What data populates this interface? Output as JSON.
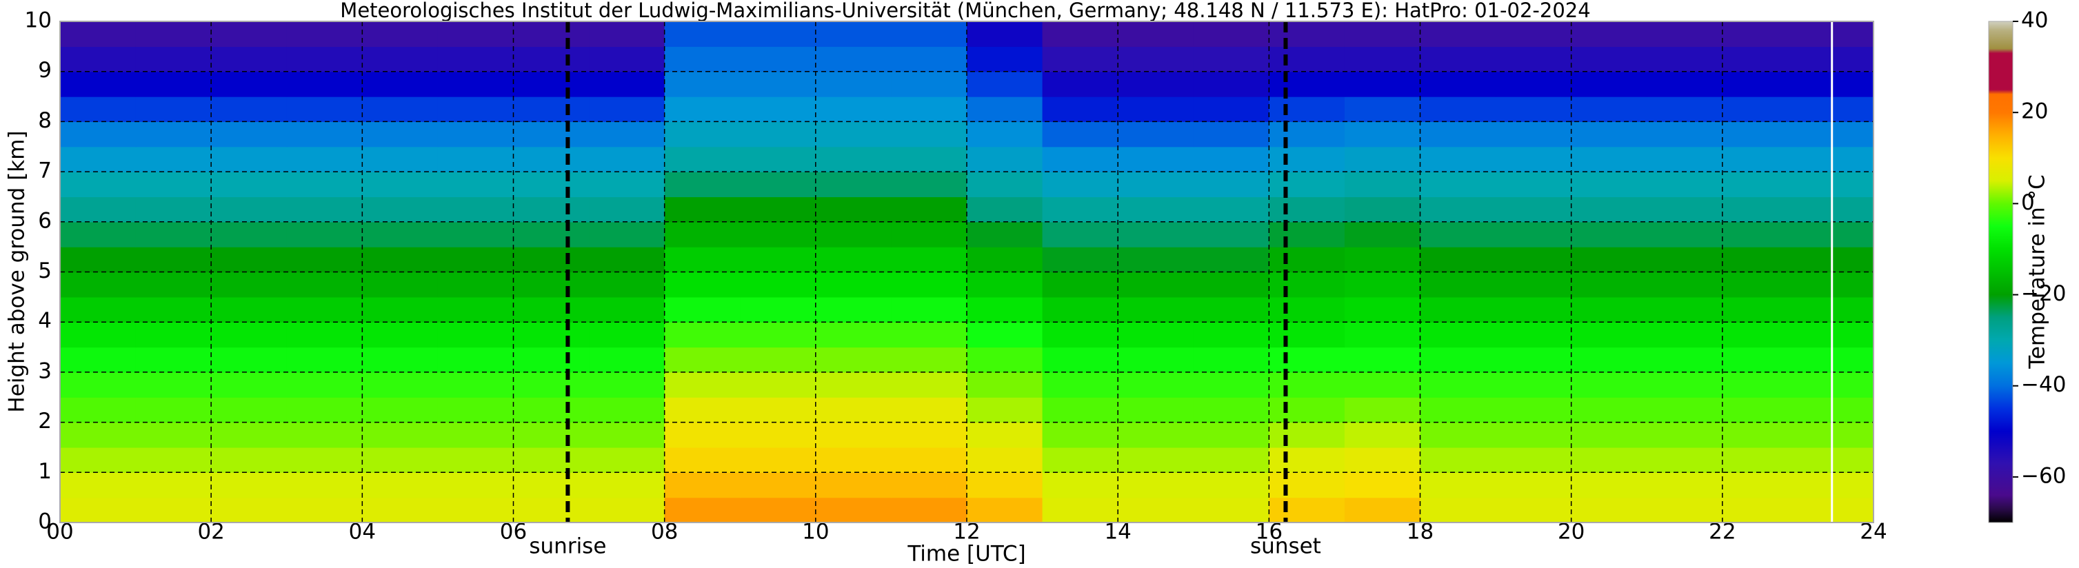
{
  "chart_data": {
    "type": "heatmap",
    "title": "Meteorologisches Institut der Ludwig-Maximilians-Universität (München, Germany; 48.148 N / 11.573 E):    HatPro: 01-02-2024",
    "xlabel": "Time [UTC]",
    "ylabel": "Height above ground [km]",
    "xlim": [
      0,
      24
    ],
    "ylim": [
      0,
      10
    ],
    "xticks": [
      {
        "value": 0,
        "label": "00"
      },
      {
        "value": 2,
        "label": "02"
      },
      {
        "value": 4,
        "label": "04"
      },
      {
        "value": 6,
        "label": "06"
      },
      {
        "value": 8,
        "label": "08"
      },
      10,
      12,
      14,
      16,
      18,
      20,
      22,
      24
    ],
    "yticks": [
      0,
      1,
      2,
      3,
      4,
      5,
      6,
      7,
      8,
      9,
      10
    ],
    "grid": true,
    "xbins": [
      0,
      1,
      2,
      3,
      4,
      5,
      6,
      7,
      8,
      9,
      10,
      11,
      12,
      13,
      14,
      15,
      16,
      17,
      18,
      19,
      20,
      21,
      22,
      23,
      24
    ],
    "ybins": [
      0,
      0.5,
      1,
      1.5,
      2,
      2.5,
      3,
      3.5,
      4,
      4.5,
      5,
      5.5,
      6,
      6.5,
      7,
      7.5,
      8,
      8.5,
      9,
      9.5,
      10
    ],
    "z": [
      [
        6,
        6,
        6,
        6,
        6,
        6,
        6,
        6,
        17,
        17,
        17,
        17,
        14,
        6,
        6,
        6,
        12,
        13,
        6,
        6,
        6,
        6,
        6,
        6
      ],
      [
        5,
        5,
        5,
        5,
        5,
        5,
        5,
        5,
        14,
        14,
        14,
        14,
        11,
        5,
        5,
        5,
        9,
        10,
        5,
        5,
        5,
        5,
        5,
        5
      ],
      [
        3,
        3,
        3,
        3,
        3,
        3,
        3,
        3,
        11,
        11,
        11,
        11,
        8,
        3,
        3,
        3,
        6,
        7,
        3,
        3,
        3,
        3,
        3,
        3
      ],
      [
        1,
        1,
        1,
        1,
        1,
        1,
        1,
        1,
        9,
        9,
        9,
        9,
        6,
        1,
        1,
        1,
        3,
        4,
        1,
        1,
        1,
        1,
        1,
        1
      ],
      [
        -1,
        -1,
        -1,
        -1,
        -1,
        -1,
        -1,
        -1,
        7,
        7,
        7,
        7,
        3,
        -1,
        -1,
        -1,
        0,
        1,
        -1,
        -1,
        -1,
        -1,
        -1,
        -1
      ],
      [
        -3,
        -3,
        -3,
        -3,
        -3,
        -3,
        -3,
        -3,
        4,
        4,
        4,
        4,
        1,
        -3,
        -3,
        -3,
        -2,
        -2,
        -3,
        -3,
        -3,
        -3,
        -3,
        -3
      ],
      [
        -6,
        -6,
        -6,
        -6,
        -6,
        -6,
        -6,
        -6,
        1,
        1,
        1,
        1,
        -2,
        -6,
        -6,
        -6,
        -5,
        -5,
        -6,
        -6,
        -6,
        -6,
        -6,
        -6
      ],
      [
        -9,
        -9,
        -9,
        -9,
        -9,
        -9,
        -9,
        -9,
        -2,
        -2,
        -2,
        -2,
        -5,
        -9,
        -9,
        -9,
        -9,
        -8,
        -9,
        -9,
        -9,
        -9,
        -9,
        -9
      ],
      [
        -13,
        -13,
        -13,
        -13,
        -13,
        -13,
        -13,
        -13,
        -6,
        -6,
        -6,
        -6,
        -9,
        -13,
        -13,
        -13,
        -12,
        -11,
        -13,
        -13,
        -13,
        -13,
        -13,
        -13
      ],
      [
        -17,
        -17,
        -17,
        -17,
        -17,
        -17,
        -17,
        -17,
        -10,
        -10,
        -10,
        -10,
        -13,
        -17,
        -17,
        -17,
        -15,
        -14,
        -17,
        -17,
        -17,
        -17,
        -17,
        -17
      ],
      [
        -20,
        -20,
        -20,
        -20,
        -20,
        -20,
        -20,
        -20,
        -13,
        -13,
        -13,
        -13,
        -17,
        -21,
        -21,
        -21,
        -18,
        -17,
        -20,
        -20,
        -20,
        -20,
        -20,
        -20
      ],
      [
        -23,
        -23,
        -23,
        -23,
        -23,
        -23,
        -23,
        -23,
        -17,
        -17,
        -17,
        -17,
        -21,
        -24,
        -24,
        -24,
        -22,
        -21,
        -23,
        -23,
        -23,
        -23,
        -23,
        -23
      ],
      [
        -27,
        -27,
        -27,
        -27,
        -27,
        -27,
        -27,
        -27,
        -20,
        -20,
        -20,
        -20,
        -25,
        -28,
        -28,
        -28,
        -26,
        -25,
        -27,
        -27,
        -27,
        -27,
        -27,
        -27
      ],
      [
        -30,
        -30,
        -30,
        -30,
        -30,
        -30,
        -30,
        -30,
        -24,
        -24,
        -24,
        -24,
        -29,
        -32,
        -32,
        -32,
        -30,
        -29,
        -30,
        -30,
        -30,
        -30,
        -30,
        -30
      ],
      [
        -34,
        -34,
        -34,
        -34,
        -34,
        -34,
        -34,
        -34,
        -29,
        -29,
        -29,
        -29,
        -33,
        -36,
        -36,
        -36,
        -34,
        -33,
        -34,
        -34,
        -34,
        -34,
        -34,
        -34
      ],
      [
        -38,
        -38,
        -38,
        -38,
        -38,
        -38,
        -38,
        -38,
        -32,
        -32,
        -32,
        -32,
        -36,
        -41,
        -41,
        -41,
        -38,
        -37,
        -38,
        -38,
        -38,
        -38,
        -38,
        -38
      ],
      [
        -44,
        -44,
        -44,
        -44,
        -44,
        -44,
        -44,
        -44,
        -35,
        -35,
        -35,
        -35,
        -40,
        -47,
        -47,
        -47,
        -44,
        -43,
        -44,
        -44,
        -44,
        -44,
        -44,
        -44
      ],
      [
        -50,
        -50,
        -50,
        -50,
        -50,
        -50,
        -50,
        -50,
        -38,
        -38,
        -38,
        -38,
        -44,
        -52,
        -52,
        -52,
        -50,
        -50,
        -50,
        -50,
        -50,
        -50,
        -50,
        -50
      ],
      [
        -55,
        -55,
        -55,
        -55,
        -55,
        -55,
        -55,
        -55,
        -40,
        -40,
        -40,
        -40,
        -48,
        -56,
        -56,
        -56,
        -55,
        -55,
        -55,
        -55,
        -55,
        -55,
        -55,
        -55
      ],
      [
        -59,
        -59,
        -59,
        -59,
        -59,
        -59,
        -59,
        -59,
        -42,
        -42,
        -42,
        -42,
        -52,
        -60,
        -60,
        -60,
        -59,
        -59,
        -59,
        -59,
        -59,
        -59,
        -59,
        -59
      ]
    ],
    "annotations": [
      {
        "x": 6.72,
        "label": "sunrise"
      },
      {
        "x": 16.22,
        "label": "sunset"
      }
    ],
    "end_marker": 23.45,
    "colorbar": {
      "label": "Temperature in °C",
      "zlim": [
        -70,
        40
      ],
      "ticks": [
        {
          "value": -60,
          "label": "−60"
        },
        {
          "value": -40,
          "label": "−40"
        },
        {
          "value": -20,
          "label": "−20"
        },
        0,
        20,
        40
      ],
      "colorscale": [
        {
          "value": -70,
          "color": "#000000"
        },
        {
          "value": -67,
          "color": "#2a0a4a"
        },
        {
          "value": -64,
          "color": "#4a0a8c"
        },
        {
          "value": -57,
          "color": "#3010b0"
        },
        {
          "value": -50,
          "color": "#0000cc"
        },
        {
          "value": -45,
          "color": "#0030e0"
        },
        {
          "value": -40,
          "color": "#0070e0"
        },
        {
          "value": -35,
          "color": "#0098d8"
        },
        {
          "value": -30,
          "color": "#00a8b0"
        },
        {
          "value": -25,
          "color": "#00a080"
        },
        {
          "value": -20,
          "color": "#00a000"
        },
        {
          "value": -15,
          "color": "#00c000"
        },
        {
          "value": -10,
          "color": "#00e000"
        },
        {
          "value": -5,
          "color": "#10ff10"
        },
        {
          "value": 0,
          "color": "#60f800"
        },
        {
          "value": 5,
          "color": "#d8f000"
        },
        {
          "value": 10,
          "color": "#f8e000"
        },
        {
          "value": 15,
          "color": "#ffb000"
        },
        {
          "value": 20,
          "color": "#ff7800"
        },
        {
          "value": 24,
          "color": "#ff7000"
        },
        {
          "value": 25,
          "color": "#b00840"
        },
        {
          "value": 33,
          "color": "#b00840"
        },
        {
          "value": 34,
          "color": "#a09040"
        },
        {
          "value": 38,
          "color": "#b8b080"
        },
        {
          "value": 40,
          "color": "#d0d0c0"
        }
      ]
    }
  }
}
